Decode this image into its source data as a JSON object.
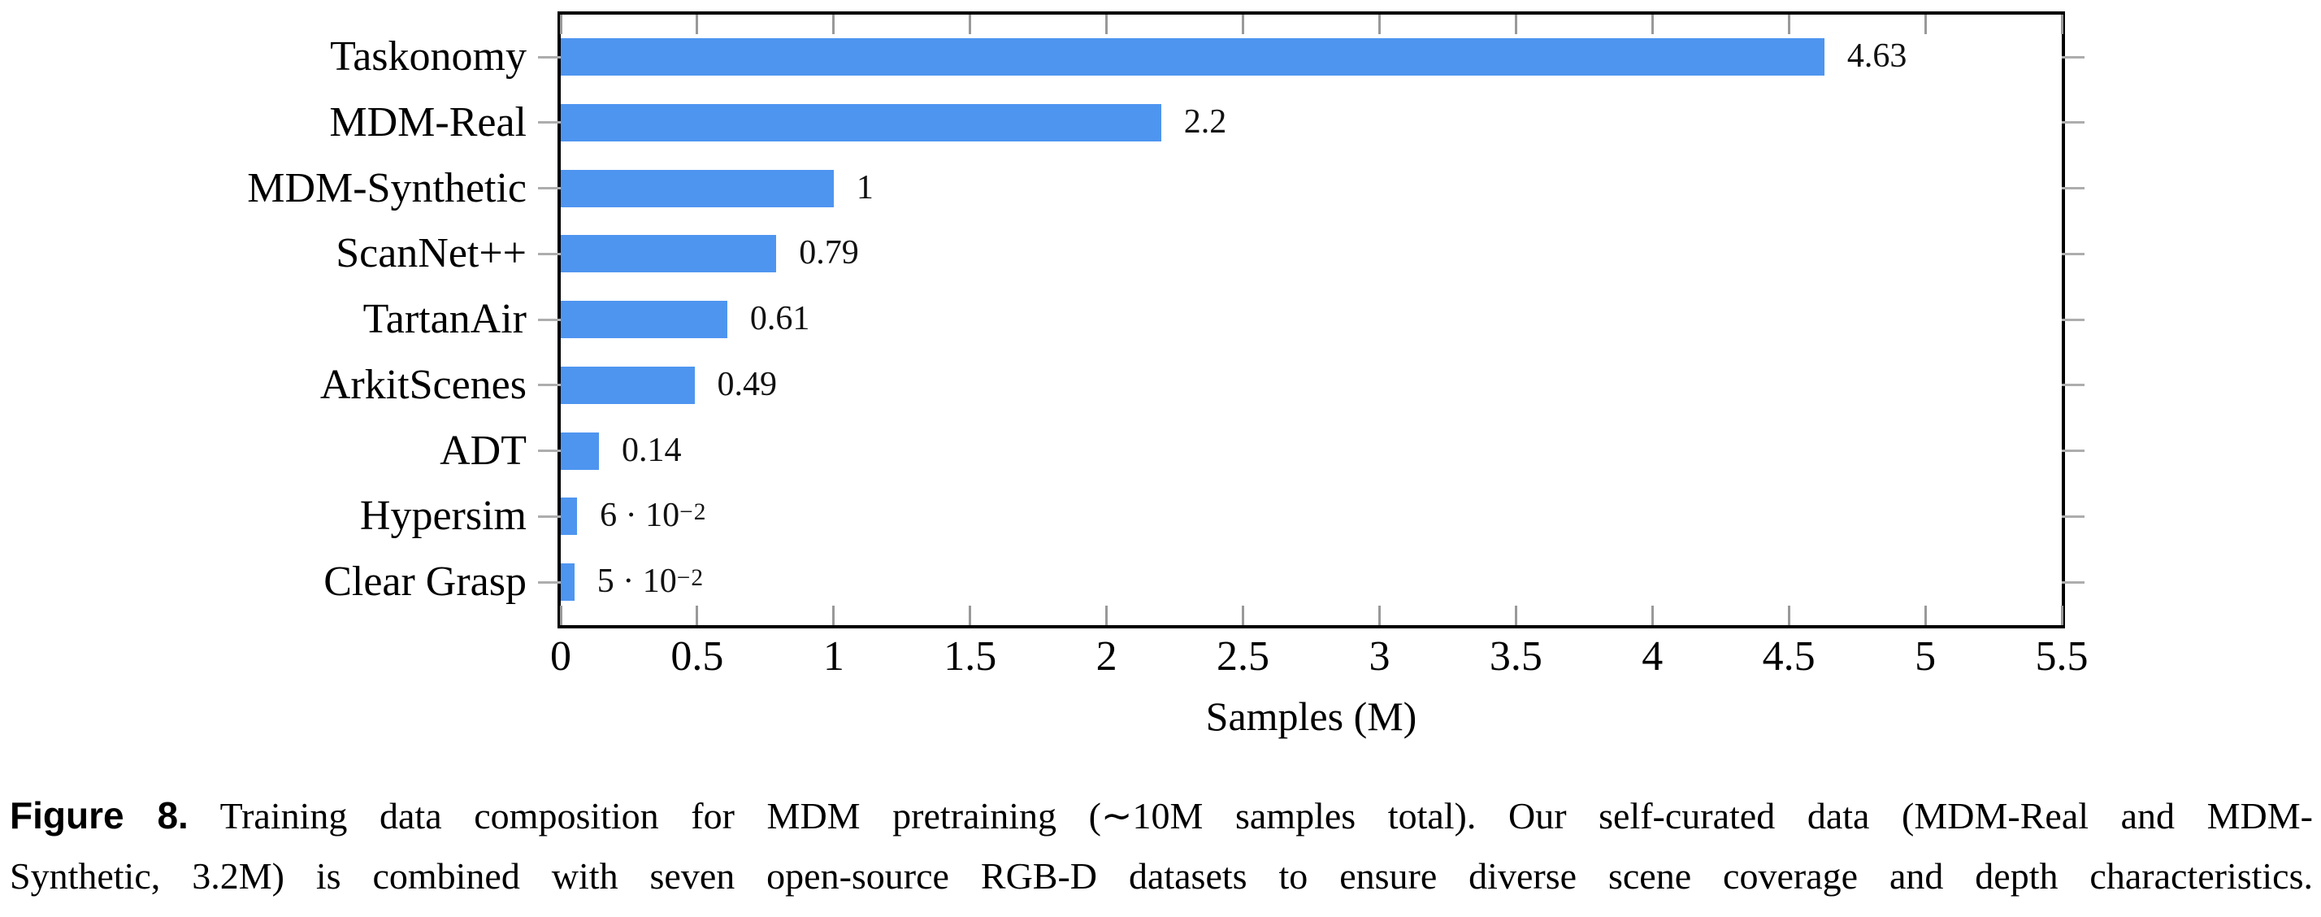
{
  "chart_data": {
    "type": "bar",
    "orientation": "horizontal",
    "title": "",
    "xlabel": "Samples (M)",
    "ylabel": "",
    "categories": [
      "Taskonomy",
      "MDM-Real",
      "MDM-Synthetic",
      "ScanNet++",
      "TartanAir",
      "ArkitScenes",
      "ADT",
      "Hypersim",
      "Clear Grasp"
    ],
    "values": [
      4.63,
      2.2,
      1,
      0.79,
      0.61,
      0.49,
      0.14,
      0.06,
      0.05
    ],
    "value_labels": [
      "4.63",
      "2.2",
      "1",
      "0.79",
      "0.61",
      "0.49",
      "0.14",
      "6 · 10^−2",
      "5 · 10^−2"
    ],
    "xlim": [
      0,
      5.5
    ],
    "xticks": [
      0,
      0.5,
      1,
      1.5,
      2,
      2.5,
      3,
      3.5,
      4,
      4.5,
      5,
      5.5
    ],
    "xtick_labels": [
      "0",
      "0.5",
      "1",
      "1.5",
      "2",
      "2.5",
      "3",
      "3.5",
      "4",
      "4.5",
      "5",
      "5.5"
    ],
    "grid": false,
    "legend": false,
    "bar_color": "#4E95F0",
    "frame_color": "#000000",
    "xtick_color": "#999999",
    "ytick_color": "#ADADAD"
  },
  "figure": {
    "caption": {
      "label": "Figure 8.",
      "line1": "Training data composition for MDM pretraining (∼10M samples total). Our self-curated data (MDM-Real and MDM-",
      "line2": "Synthetic, 3.2M) is combined with seven open-source RGB-D datasets to ensure diverse scene coverage and depth characteristics."
    }
  }
}
